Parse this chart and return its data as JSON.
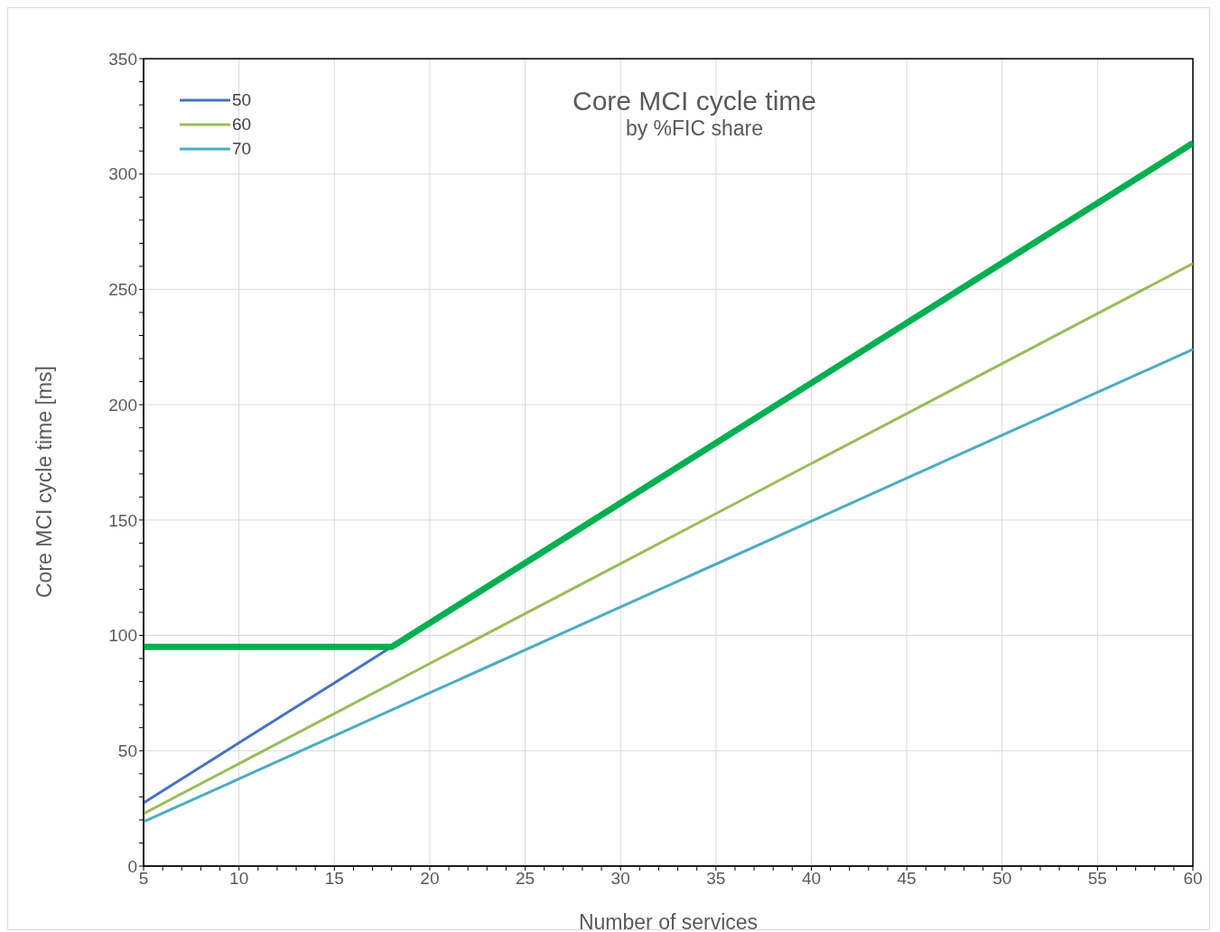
{
  "chart_data": {
    "type": "line",
    "title": "Core MCI cycle time",
    "subtitle": "by %FIC share",
    "xlabel": "Number of services",
    "ylabel": "Core MCI cycle time [ms]",
    "xlim": [
      5,
      60
    ],
    "xticks": [
      5,
      {
        "value": 6,
        "label": null
      },
      {
        "value": 7,
        "label": null
      },
      {
        "value": 8,
        "label": null
      },
      {
        "value": 9,
        "label": null
      },
      10,
      {
        "value": 11,
        "label": null
      },
      {
        "value": 12,
        "label": null
      },
      {
        "value": 13,
        "label": null
      },
      {
        "value": 14,
        "label": null
      },
      15,
      {
        "value": 16,
        "label": null
      },
      {
        "value": 17,
        "label": null
      },
      {
        "value": 18,
        "label": null
      },
      {
        "value": 19,
        "label": null
      },
      20,
      {
        "value": 21,
        "label": null
      },
      {
        "value": 22,
        "label": null
      },
      {
        "value": 23,
        "label": null
      },
      {
        "value": 24,
        "label": null
      },
      25,
      {
        "value": 26,
        "label": null
      },
      {
        "value": 27,
        "label": null
      },
      {
        "value": 28,
        "label": null
      },
      {
        "value": 29,
        "label": null
      },
      30,
      {
        "value": 31,
        "label": null
      },
      {
        "value": 32,
        "label": null
      },
      {
        "value": 33,
        "label": null
      },
      {
        "value": 34,
        "label": null
      },
      35,
      {
        "value": 36,
        "label": null
      },
      {
        "value": 37,
        "label": null
      },
      {
        "value": 38,
        "label": null
      },
      {
        "value": 39,
        "label": null
      },
      40,
      {
        "value": 41,
        "label": null
      },
      {
        "value": 42,
        "label": null
      },
      {
        "value": 43,
        "label": null
      },
      {
        "value": 44,
        "label": null
      },
      45,
      {
        "value": 46,
        "label": null
      },
      {
        "value": 47,
        "label": null
      },
      {
        "value": 48,
        "label": null
      },
      {
        "value": 49,
        "label": null
      },
      50,
      {
        "value": 51,
        "label": null
      },
      {
        "value": 52,
        "label": null
      },
      {
        "value": 53,
        "label": null
      },
      {
        "value": 54,
        "label": null
      },
      55,
      {
        "value": 56,
        "label": null
      },
      {
        "value": 57,
        "label": null
      },
      {
        "value": 58,
        "label": null
      },
      {
        "value": 59,
        "label": null
      },
      60
    ],
    "ylim": [
      0,
      350
    ],
    "yticks": [
      0,
      {
        "value": 10,
        "label": null
      },
      {
        "value": 20,
        "label": null
      },
      {
        "value": 30,
        "label": null
      },
      {
        "value": 40,
        "label": null
      },
      50,
      {
        "value": 60,
        "label": null
      },
      {
        "value": 70,
        "label": null
      },
      {
        "value": 80,
        "label": null
      },
      {
        "value": 90,
        "label": null
      },
      100,
      {
        "value": 110,
        "label": null
      },
      {
        "value": 120,
        "label": null
      },
      {
        "value": 130,
        "label": null
      },
      {
        "value": 140,
        "label": null
      },
      150,
      {
        "value": 160,
        "label": null
      },
      {
        "value": 170,
        "label": null
      },
      {
        "value": 180,
        "label": null
      },
      {
        "value": 190,
        "label": null
      },
      200,
      {
        "value": 210,
        "label": null
      },
      {
        "value": 220,
        "label": null
      },
      {
        "value": 230,
        "label": null
      },
      {
        "value": 240,
        "label": null
      },
      250,
      {
        "value": 260,
        "label": null
      },
      {
        "value": 270,
        "label": null
      },
      {
        "value": 280,
        "label": null
      },
      {
        "value": 290,
        "label": null
      },
      300,
      {
        "value": 310,
        "label": null
      },
      {
        "value": 320,
        "label": null
      },
      {
        "value": 330,
        "label": null
      },
      {
        "value": 340,
        "label": null
      },
      350
    ],
    "grid": true,
    "legend": "top left",
    "marker": "none",
    "line_style": "solid",
    "series": [
      {
        "name": "50",
        "color": "#4472c4",
        "x": [
          5,
          10,
          15,
          18
        ],
        "values": [
          27.4,
          53.4,
          79.4,
          95
        ]
      },
      {
        "name": "60",
        "color": "#9bbb59",
        "x": [
          5,
          10,
          20,
          30,
          40,
          50,
          60
        ],
        "values": [
          22.7,
          44.4,
          87.8,
          131.1,
          174.5,
          217.8,
          261.2
        ]
      },
      {
        "name": "70",
        "color": "#4bacc6",
        "x": [
          5,
          10,
          20,
          30,
          40,
          50,
          60
        ],
        "values": [
          19.2,
          37.8,
          75.1,
          112.3,
          149.5,
          186.8,
          224
        ]
      },
      {
        "color": "#00b050",
        "x": [
          5,
          18,
          30,
          40,
          50,
          60
        ],
        "values": [
          95,
          95,
          157.4,
          209.4,
          261.4,
          313.4
        ]
      }
    ]
  }
}
